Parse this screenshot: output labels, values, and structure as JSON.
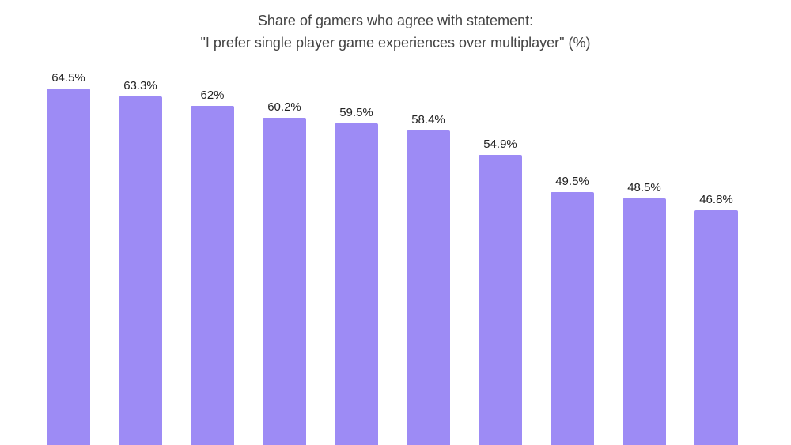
{
  "chart_data": {
    "type": "bar",
    "title": "Share of gamers who agree with statement:",
    "subtitle": "\"I prefer single player game experiences over multiplayer\" (%)",
    "xlabel": "",
    "ylabel": "",
    "categories": [
      "",
      "",
      "",
      "",
      "",
      "",
      "",
      "",
      "",
      ""
    ],
    "values": [
      64.5,
      63.3,
      62,
      60.2,
      59.5,
      58.4,
      54.9,
      49.5,
      48.5,
      46.8
    ],
    "data_labels": [
      "64.5%",
      "63.3%",
      "62%",
      "60.2%",
      "59.5%",
      "58.4%",
      "54.9%",
      "49.5%",
      "48.5%",
      "46.8%"
    ],
    "bar_color": "#9d8bf5",
    "grid": false,
    "legend": null
  },
  "title": {
    "line1": "Share of gamers who agree with statement:",
    "line2": "\"I prefer single player game experiences over multiplayer\" (%)"
  }
}
